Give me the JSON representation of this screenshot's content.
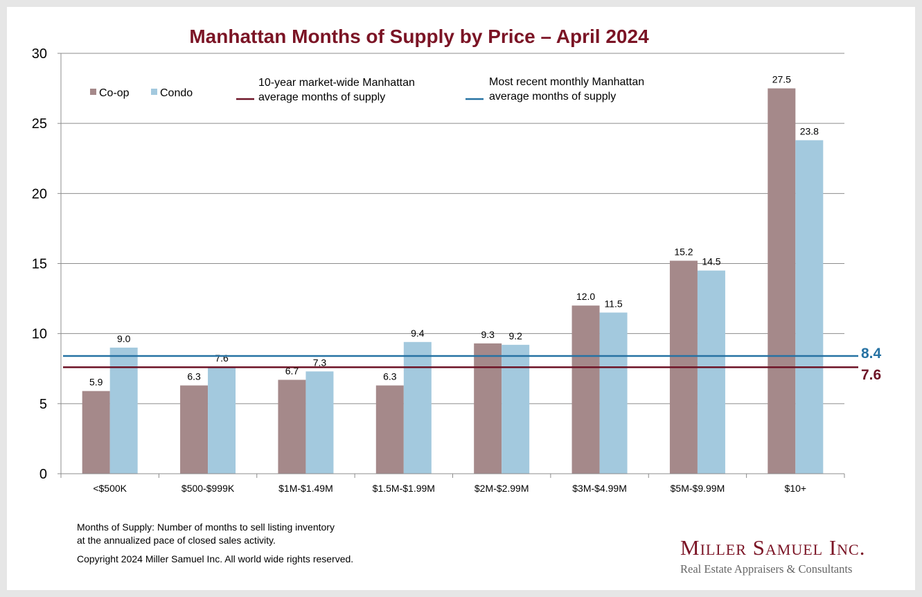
{
  "chart_data": {
    "type": "bar",
    "title": "Manhattan Months of Supply by Price – April 2024",
    "categories": [
      "<$500K",
      "$500-$999K",
      "$1M-$1.49M",
      "$1.5M-$1.99M",
      "$2M-$2.99M",
      "$3M-$4.99M",
      "$5M-$9.99M",
      "$10+"
    ],
    "series": [
      {
        "name": "Co-op",
        "color": "#a5898a",
        "values": [
          5.9,
          6.3,
          6.7,
          6.3,
          9.3,
          12.0,
          15.2,
          27.5
        ],
        "labels": [
          "5.9",
          "6.3",
          "6.7",
          "6.3",
          "9.3",
          "12.0",
          "15.2",
          "27.5"
        ]
      },
      {
        "name": "Condo",
        "color": "#a3c9de",
        "values": [
          9.0,
          7.6,
          7.3,
          9.4,
          9.2,
          11.5,
          14.5,
          23.8
        ],
        "labels": [
          "9.0",
          "7.6",
          "7.3",
          "9.4",
          "9.2",
          "11.5",
          "14.5",
          "23.8"
        ]
      }
    ],
    "reference_lines": [
      {
        "name_line1": "10-year market-wide Manhattan",
        "name_line2": "average months of supply",
        "value": 7.6,
        "label": "7.6",
        "color": "#6e1427"
      },
      {
        "name_line1": "Most recent monthly Manhattan",
        "name_line2": "average months of supply",
        "value": 8.4,
        "label": "8.4",
        "color": "#2672a3"
      }
    ],
    "y_ticks": [
      "0",
      "5",
      "10",
      "15",
      "20",
      "25",
      "30"
    ],
    "ylim": [
      0,
      30
    ],
    "grid": true,
    "legend_position": "top-left"
  },
  "notes": {
    "definition_line1": "Months of Supply: Number of months to sell listing inventory",
    "definition_line2": "at the annualized pace of closed sales activity.",
    "copyright": "Copyright 2024 Miller Samuel Inc.  All world wide rights reserved."
  },
  "logo": {
    "name": "Miller Samuel Inc.",
    "tagline": "Real Estate Appraisers & Consultants"
  },
  "colors": {
    "title": "#7b1425",
    "coop": "#a5898a",
    "condo": "#a3c9de",
    "ten_year_line": "#6e1427",
    "monthly_line": "#2672a3"
  }
}
